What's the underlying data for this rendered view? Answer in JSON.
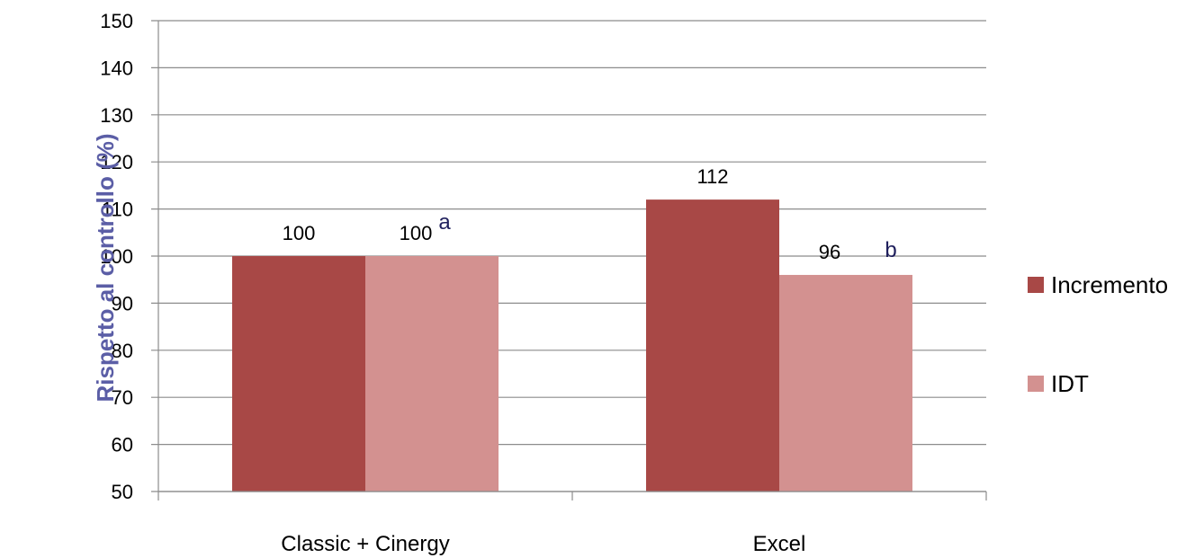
{
  "chart_data": {
    "type": "bar",
    "title": "",
    "xlabel": "",
    "ylabel": "Rispetto al controllo (%)",
    "ylim": [
      50,
      150
    ],
    "yticks": [
      50,
      60,
      70,
      80,
      90,
      100,
      110,
      120,
      130,
      140,
      150
    ],
    "grid": true,
    "legend_position": "right",
    "categories": [
      "Classic + Cinergy",
      "Excel"
    ],
    "series": [
      {
        "name": "Incremento",
        "color": "#a84846",
        "values": [
          100,
          112
        ],
        "labels": [
          "100",
          "112"
        ]
      },
      {
        "name": "IDT",
        "color": "#d39190",
        "values": [
          100,
          96
        ],
        "labels": [
          "100",
          "96"
        ]
      }
    ],
    "annotations": [
      {
        "text": "a",
        "category": "Classic + Cinergy",
        "series": "IDT"
      },
      {
        "text": "b",
        "category": "Excel",
        "series": "IDT"
      }
    ]
  }
}
